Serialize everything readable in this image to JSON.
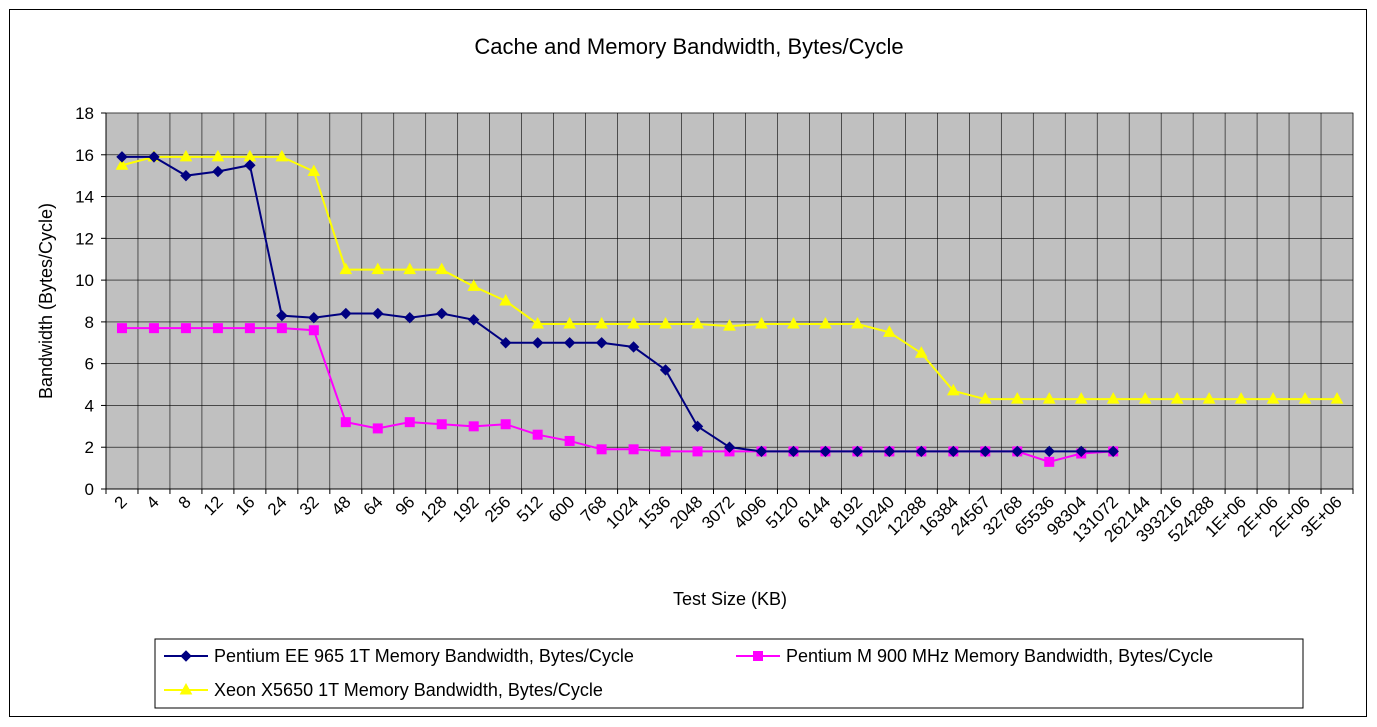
{
  "chart_data": {
    "type": "line",
    "title": "Cache and Memory Bandwidth, Bytes/Cycle",
    "xlabel": "Test Size (KB)",
    "ylabel": "Bandwidth (Bytes/Cycle)",
    "ylim": [
      0,
      18
    ],
    "yticks": [
      0,
      2,
      4,
      6,
      8,
      10,
      12,
      14,
      16,
      18
    ],
    "categories": [
      "2",
      "4",
      "8",
      "12",
      "16",
      "24",
      "32",
      "48",
      "64",
      "96",
      "128",
      "192",
      "256",
      "512",
      "600",
      "768",
      "1024",
      "1536",
      "2048",
      "3072",
      "4096",
      "5120",
      "6144",
      "8192",
      "10240",
      "12288",
      "16384",
      "24567",
      "32768",
      "65536",
      "98304",
      "131072",
      "262144",
      "393216",
      "524288",
      "1E+06",
      "2E+06",
      "2E+06",
      "3E+06"
    ],
    "grid": true,
    "plot_background": "#c0c0c0",
    "legend_position": "bottom",
    "series": [
      {
        "name": "Pentium EE 965 1T Memory Bandwidth, Bytes/Cycle",
        "color": "#000080",
        "marker": "diamond",
        "values": [
          15.9,
          15.9,
          15.0,
          15.2,
          15.5,
          8.3,
          8.2,
          8.4,
          8.4,
          8.2,
          8.4,
          8.1,
          7.0,
          7.0,
          7.0,
          7.0,
          6.8,
          5.7,
          3.0,
          2.0,
          1.8,
          1.8,
          1.8,
          1.8,
          1.8,
          1.8,
          1.8,
          1.8,
          1.8,
          1.8,
          1.8,
          1.8,
          null,
          null,
          null,
          null,
          null,
          null,
          null
        ]
      },
      {
        "name": "Pentium M 900 MHz Memory Bandwidth, Bytes/Cycle",
        "color": "#ff00ff",
        "marker": "square",
        "values": [
          7.7,
          7.7,
          7.7,
          7.7,
          7.7,
          7.7,
          7.6,
          3.2,
          2.9,
          3.2,
          3.1,
          3.0,
          3.1,
          2.6,
          2.3,
          1.9,
          1.9,
          1.8,
          1.8,
          1.8,
          1.8,
          1.8,
          1.8,
          1.8,
          1.8,
          1.8,
          1.8,
          1.8,
          1.8,
          1.3,
          1.7,
          1.8,
          null,
          null,
          null,
          null,
          null,
          null,
          null
        ]
      },
      {
        "name": "Xeon X5650 1T Memory Bandwidth, Bytes/Cycle",
        "color": "#ffff00",
        "marker": "triangle",
        "values": [
          15.5,
          15.9,
          15.9,
          15.9,
          15.9,
          15.9,
          15.2,
          10.5,
          10.5,
          10.5,
          10.5,
          9.7,
          9.0,
          7.9,
          7.9,
          7.9,
          7.9,
          7.9,
          7.9,
          7.8,
          7.9,
          7.9,
          7.9,
          7.9,
          7.5,
          6.5,
          4.7,
          4.3,
          4.3,
          4.3,
          4.3,
          4.3,
          4.3,
          4.3,
          4.3,
          4.3,
          4.3,
          4.3,
          4.3
        ]
      }
    ]
  }
}
